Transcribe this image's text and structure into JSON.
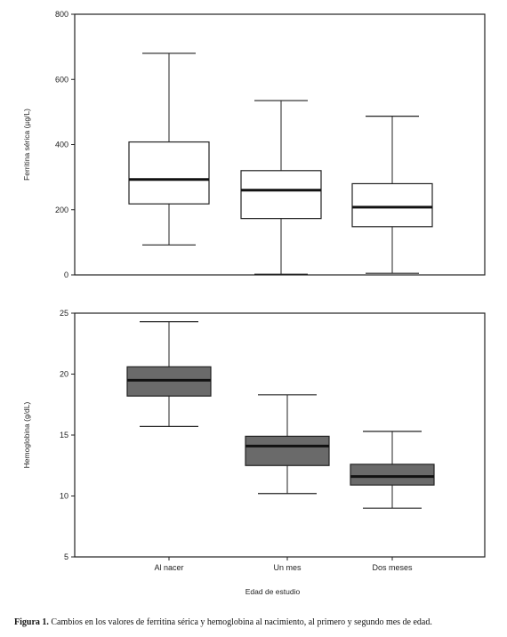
{
  "chart_data": [
    {
      "type": "boxplot",
      "ylabel": "Ferritina sérica (µg/L)",
      "xlabel": "",
      "ylim": [
        0,
        800
      ],
      "yticks": [
        0,
        200,
        400,
        600,
        800
      ],
      "categories": [
        "Al nacer",
        "Un mes",
        "Dos meses"
      ],
      "show_category_labels": false,
      "box_color": "#ffffff",
      "boxes": [
        {
          "category": "Al nacer",
          "min": 92,
          "q1": 218,
          "median": 293,
          "q3": 408,
          "max": 680
        },
        {
          "category": "Un mes",
          "min": 2,
          "q1": 173,
          "median": 260,
          "q3": 320,
          "max": 535
        },
        {
          "category": "Dos meses",
          "min": 5,
          "q1": 148,
          "median": 208,
          "q3": 280,
          "max": 487
        }
      ]
    },
    {
      "type": "boxplot",
      "ylabel": "Hemoglobina (g/dL)",
      "xlabel": "Edad de estudio",
      "ylim": [
        5,
        25
      ],
      "yticks": [
        5,
        10,
        15,
        20,
        25
      ],
      "categories": [
        "Al nacer",
        "Un mes",
        "Dos meses"
      ],
      "show_category_labels": true,
      "box_color": "#6a6a6a",
      "boxes": [
        {
          "category": "Al nacer",
          "min": 15.7,
          "q1": 18.2,
          "median": 19.5,
          "q3": 20.6,
          "max": 24.3
        },
        {
          "category": "Un mes",
          "min": 10.2,
          "q1": 12.5,
          "median": 14.1,
          "q3": 14.9,
          "max": 18.3
        },
        {
          "category": "Dos meses",
          "min": 9.0,
          "q1": 10.9,
          "median": 11.6,
          "q3": 12.6,
          "max": 15.3
        }
      ]
    }
  ],
  "caption": {
    "lead": "Figura 1.",
    "text": " Cambios en los valores de ferritina sérica y hemoglobina al nacimiento, al primero y segundo mes de edad."
  }
}
